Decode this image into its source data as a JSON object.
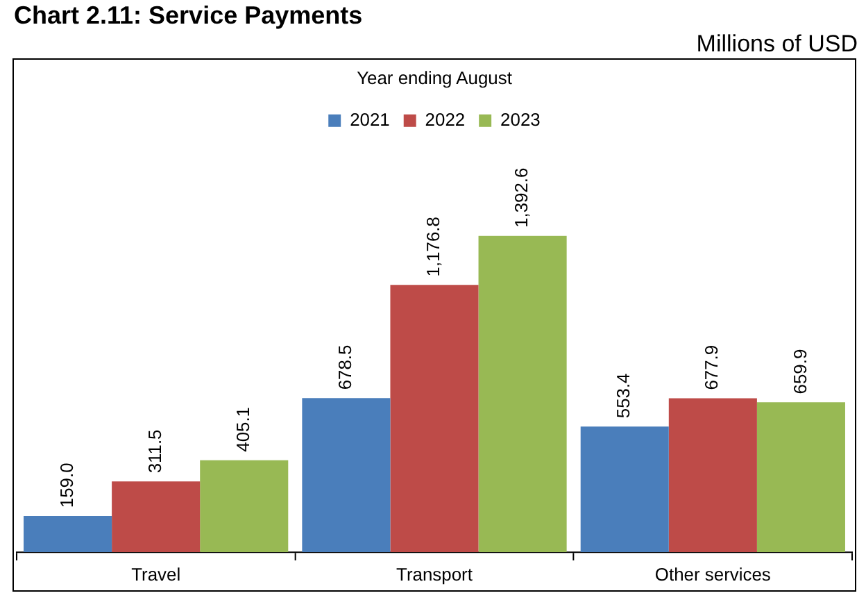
{
  "chart_data": {
    "type": "bar",
    "title": "Chart 2.11: Service Payments",
    "annotations": [
      "Millions of USD"
    ],
    "subtitle": "Year ending August",
    "categories": [
      "Travel",
      "Transport",
      "Other services"
    ],
    "series": [
      {
        "name": "2021",
        "color": "#4a7ebb",
        "values": [
          159.0,
          678.5,
          553.4
        ],
        "value_labels": [
          "159.0",
          "678.5",
          "553.4"
        ]
      },
      {
        "name": "2022",
        "color": "#be4b48",
        "values": [
          311.5,
          1176.8,
          677.9
        ],
        "value_labels": [
          "311.5",
          "1,176.8",
          "677.9"
        ]
      },
      {
        "name": "2023",
        "color": "#98b954",
        "values": [
          405.1,
          1392.6,
          659.9
        ],
        "value_labels": [
          "405.1",
          "1,392.6",
          "659.9"
        ]
      }
    ],
    "legend": "top",
    "grid": false
  }
}
